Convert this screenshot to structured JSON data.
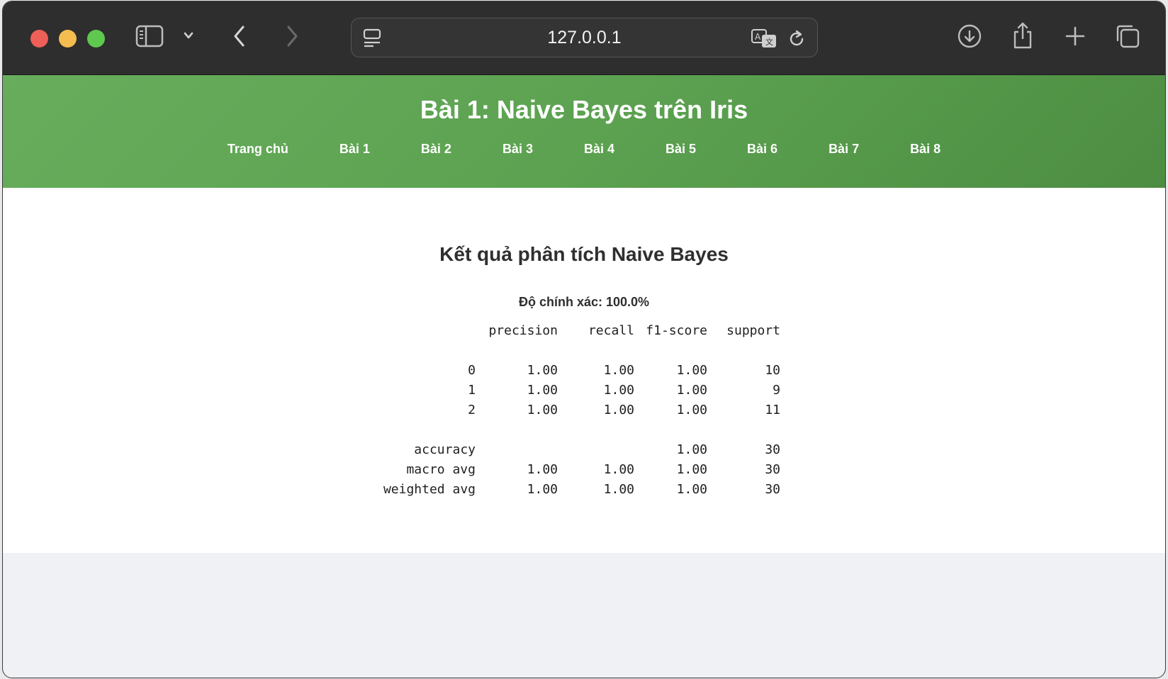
{
  "browser": {
    "url": "127.0.0.1"
  },
  "header": {
    "title": "Bài 1: Naive Bayes trên Iris",
    "nav": [
      "Trang chủ",
      "Bài 1",
      "Bài 2",
      "Bài 3",
      "Bài 4",
      "Bài 5",
      "Bài 6",
      "Bài 7",
      "Bài 8"
    ]
  },
  "result": {
    "title": "Kết quả phân tích Naive Bayes",
    "accuracy_text": "Độ chính xác: 100.0%",
    "report": {
      "columns": [
        "precision",
        "recall",
        "f1-score",
        "support"
      ],
      "class_rows": [
        {
          "label": "0",
          "precision": "1.00",
          "recall": "1.00",
          "f1": "1.00",
          "support": "10"
        },
        {
          "label": "1",
          "precision": "1.00",
          "recall": "1.00",
          "f1": "1.00",
          "support": "9"
        },
        {
          "label": "2",
          "precision": "1.00",
          "recall": "1.00",
          "f1": "1.00",
          "support": "11"
        }
      ],
      "summary_rows": [
        {
          "label": "accuracy",
          "precision": "",
          "recall": "",
          "f1": "1.00",
          "support": "30"
        },
        {
          "label": "macro avg",
          "precision": "1.00",
          "recall": "1.00",
          "f1": "1.00",
          "support": "30"
        },
        {
          "label": "weighted avg",
          "precision": "1.00",
          "recall": "1.00",
          "f1": "1.00",
          "support": "30"
        }
      ]
    }
  },
  "colors": {
    "header_green": "#5ca251",
    "toolbar": "#2e2e2e",
    "page_bg": "#eff1f4"
  }
}
